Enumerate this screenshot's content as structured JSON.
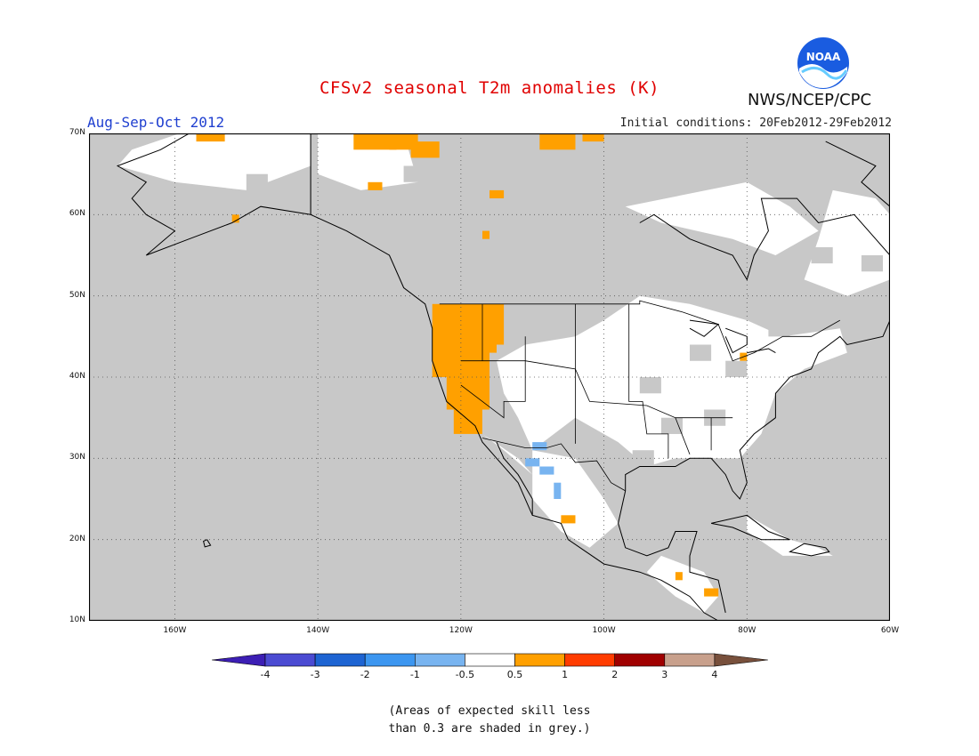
{
  "header": {
    "title": "CFSv2 seasonal T2m anomalies (K)",
    "season": "Aug-Sep-Oct 2012",
    "initial_conditions": "Initial conditions: 20Feb2012-29Feb2012",
    "agency": "NWS/NCEP/CPC",
    "logo_text": "NOAA"
  },
  "map": {
    "lat_labels": [
      "70N",
      "60N",
      "50N",
      "40N",
      "30N",
      "20N",
      "10N"
    ],
    "lon_labels": [
      "160W",
      "140W",
      "120W",
      "100W",
      "80W",
      "60W"
    ],
    "lon_range": [
      -172,
      -60
    ],
    "lat_range": [
      10,
      70
    ],
    "background_color": "#c8c8c8",
    "land_color": "#ffffff",
    "warm_color": "#ffa000",
    "cool_color": "#78b4f0"
  },
  "colorbar": {
    "labels": [
      "-4",
      "-3",
      "-2",
      "-1",
      "-0.5",
      "0.5",
      "1",
      "2",
      "3",
      "4"
    ],
    "colors": [
      "#3c1eb4",
      "#4b4bd2",
      "#1e64d2",
      "#3c96f0",
      "#78b4f0",
      "#ffffff",
      "#ffa000",
      "#ff3c00",
      "#a00000",
      "#c8a08c",
      "#78503c"
    ]
  },
  "footnote": {
    "line1": "(Areas of expected skill less",
    "line2": "than 0.3 are shaded in grey.)"
  }
}
